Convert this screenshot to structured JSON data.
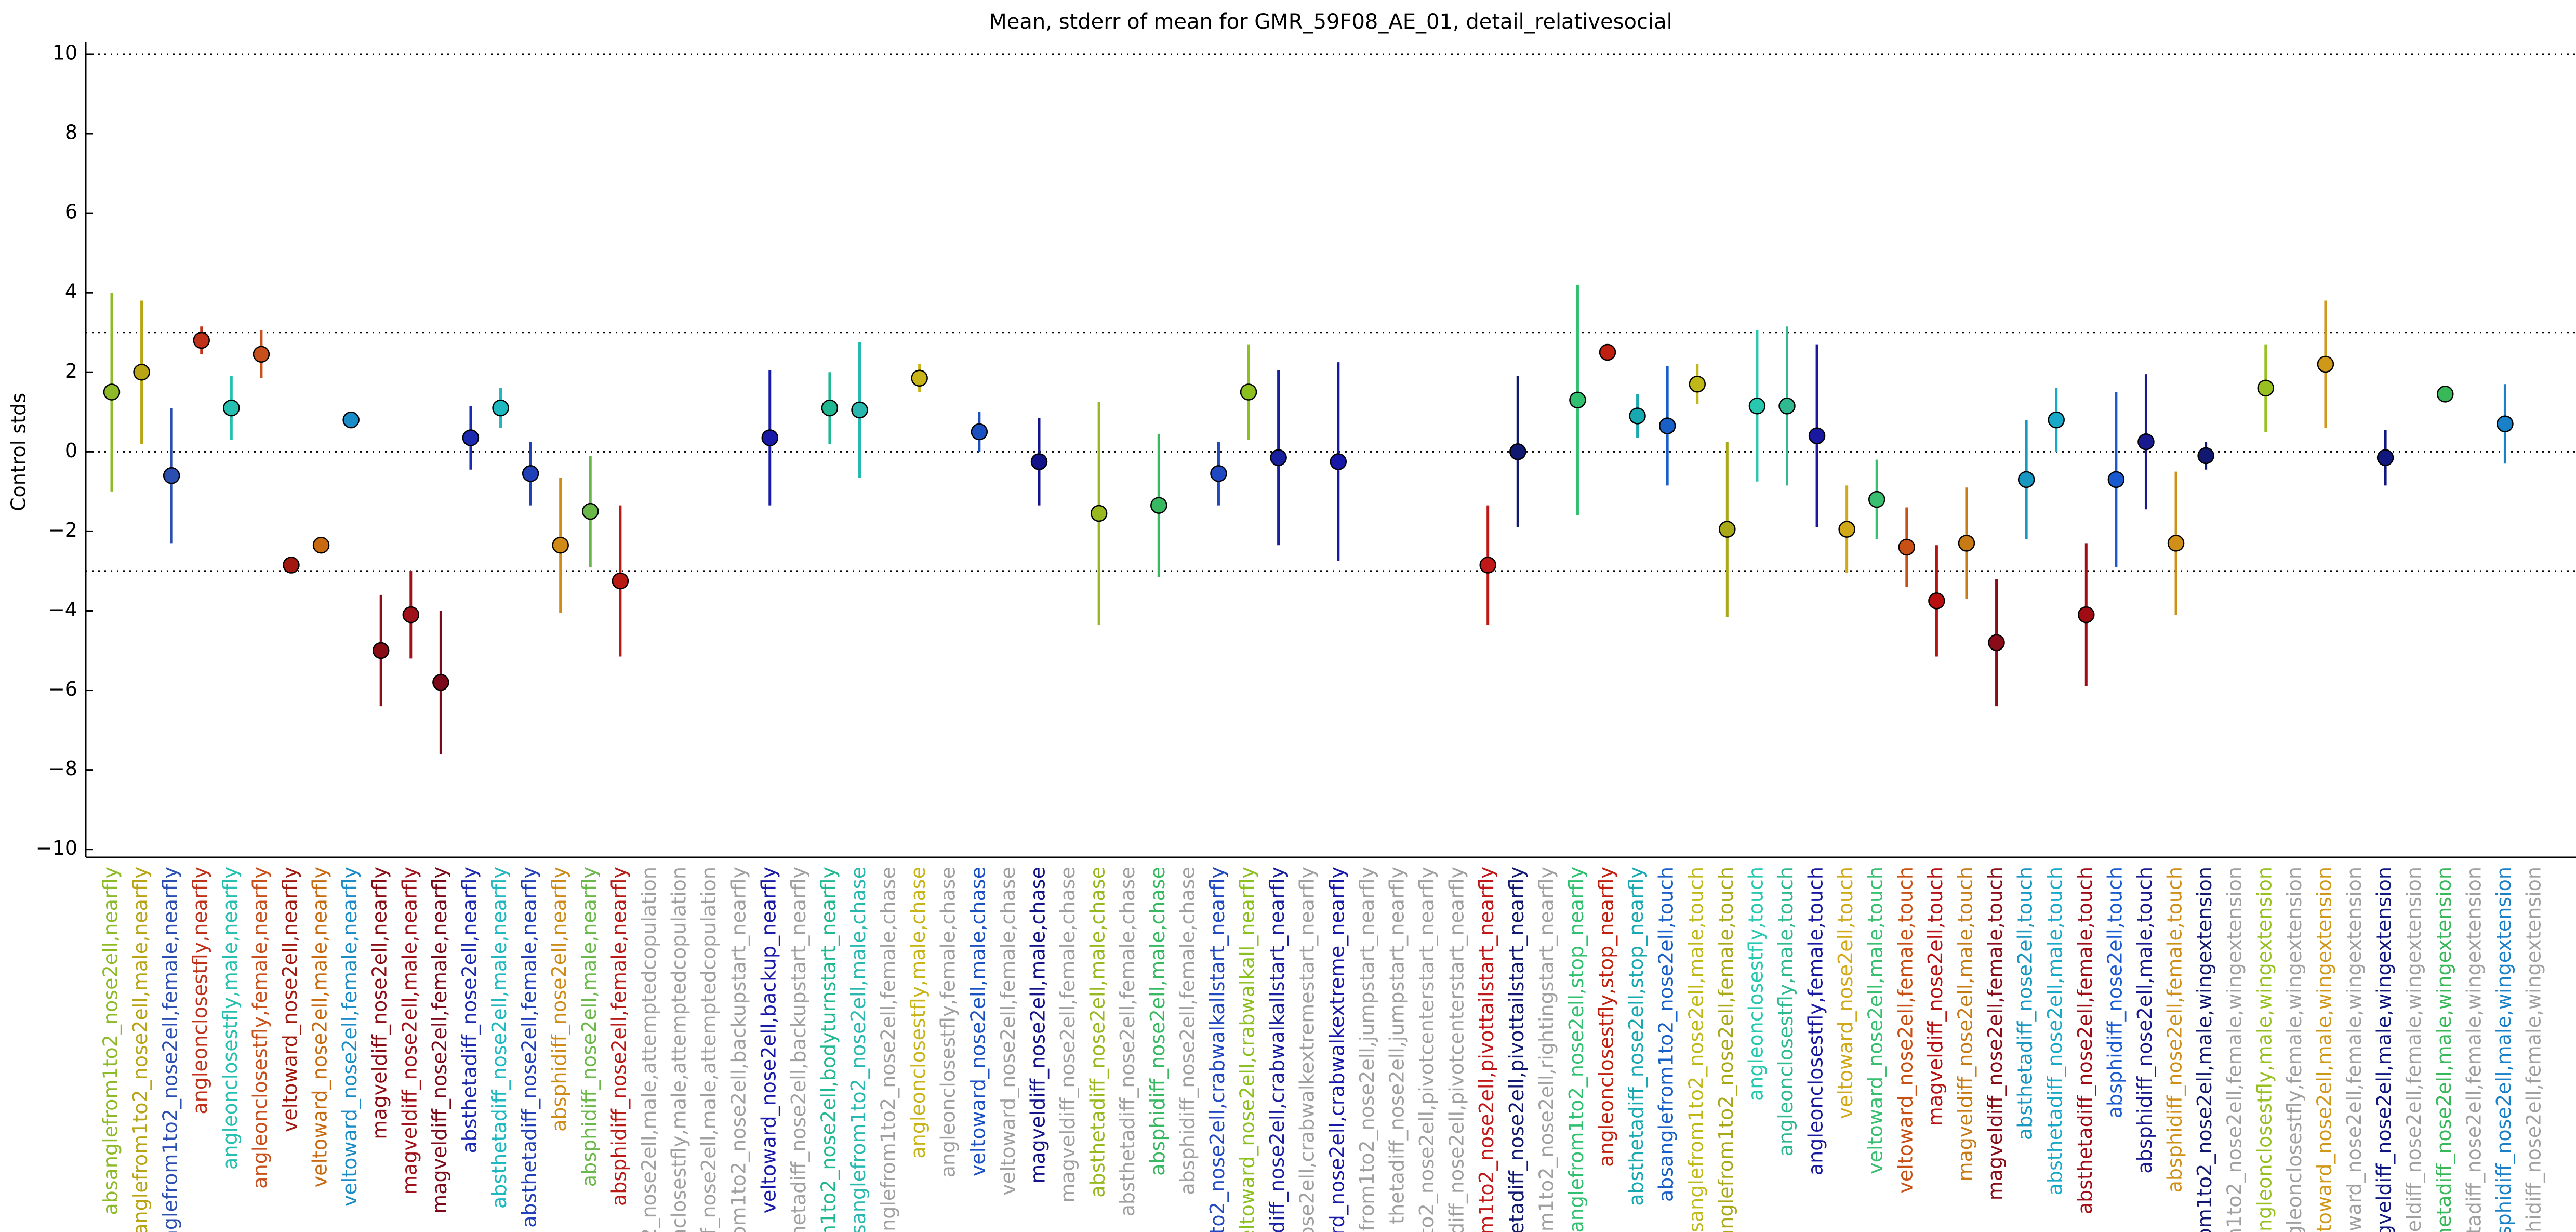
{
  "chart_data": {
    "type": "errorbar",
    "title": "Mean, stderr of mean for GMR_59F08_AE_01, detail_relativesocial",
    "ylabel": "Control stds",
    "ylim": [
      -10.2,
      10.3
    ],
    "yticks": [
      {
        "value": -10,
        "label": "−10"
      },
      {
        "value": -8,
        "label": "−8"
      },
      {
        "value": -6,
        "label": "−6"
      },
      {
        "value": -4,
        "label": "−4"
      },
      {
        "value": -2,
        "label": "−2"
      },
      0,
      2,
      4,
      6,
      8,
      10
    ],
    "hlines": [
      10,
      3,
      0,
      -3
    ],
    "categories": [
      "absanglefrom1to2_nose2ell,nearfly",
      "sanglefrom1to2_nose2ell,male,nearfly",
      "anglefrom1to2_nose2ell,female,nearfly",
      "angleonclosestfly,nearfly",
      "angleonclosestfly,male,nearfly",
      "angleonclosestfly,female,nearfly",
      "veltoward_nose2ell,nearfly",
      "veltoward_nose2ell,male,nearfly",
      "veltoward_nose2ell,female,nearfly",
      "magveldiff_nose2ell,nearfly",
      "magveldiff_nose2ell,male,nearfly",
      "magveldiff_nose2ell,female,nearfly",
      "absthetadiff_nose2ell,nearfly",
      "absthetadiff_nose2ell,male,nearfly",
      "absthetadiff_nose2ell,female,nearfly",
      "absphidiff_nose2ell,nearfly",
      "absphidiff_nose2ell,male,nearfly",
      "absphidiff_nose2ell,female,nearfly",
      "o2_nose2ell,male,attemptedcopulation",
      "onclosestfly,male,attemptedcopulation",
      "iff_nose2ell,male,attemptedcopulation",
      "rom1to2_nose2ell,backupstart_nearfly",
      "veltoward_nose2ell,backup_nearfly",
      "thetadiff_nose2ell,backupstart_nearfly",
      "m1to2_nose2ell,bodyturnstart_nearfly",
      "bsanglefrom1to2_nose2ell,male,chase",
      "anglefrom1to2_nose2ell,female,chase",
      "angleonclosestfly,male,chase",
      "angleonclosestfly,female,chase",
      "veltoward_nose2ell,male,chase",
      "veltoward_nose2ell,female,chase",
      "magveldiff_nose2ell,male,chase",
      "magveldiff_nose2ell,female,chase",
      "absthetadiff_nose2ell,male,chase",
      "absthetadiff_nose2ell,female,chase",
      "absphidiff_nose2ell,male,chase",
      "absphidiff_nose2ell,female,chase",
      "1to2_nose2ell,crabwalkallstart_nearfly",
      "veltoward_nose2ell,crabwalkall_nearfly",
      "adiff_nose2ell,crabwalkallstart_nearfly",
      "ose2ell,crabwalkextremestart_nearfly",
      "ard_nose2ell,crabwalkextreme_nearfly",
      "lefrom1to2_nose2ell,jumpstart_nearfly",
      "thetadiff_nose2ell,jumpstart_nearfly",
      "f1to2_nose2ell,pivotcenterstart_nearfly",
      "adiff_nose2ell,pivotcenterstart_nearfly",
      "rom1to2_nose2ell,pivottailstart_nearfly",
      "thetadiff_nose2ell,pivottailstart_nearfly",
      "rom1to2_nose2ell,rightingstart_nearfly",
      "sanglefrom1to2_nose2ell,stop_nearfly",
      "angleonclosestfly,stop_nearfly",
      "absthetadiff_nose2ell,stop_nearfly",
      "absanglefrom1to2_nose2ell,touch",
      "bsanglefrom1to2_nose2ell,male,touch",
      "sanglefrom1to2_nose2ell,female,touch",
      "angleonclosestfly,touch",
      "angleonclosestfly,male,touch",
      "angleonclosestfly,female,touch",
      "veltoward_nose2ell,touch",
      "veltoward_nose2ell,male,touch",
      "veltoward_nose2ell,female,touch",
      "magveldiff_nose2ell,touch",
      "magveldiff_nose2ell,male,touch",
      "magveldiff_nose2ell,female,touch",
      "absthetadiff_nose2ell,touch",
      "absthetadiff_nose2ell,male,touch",
      "absthetadiff_nose2ell,female,touch",
      "absphidiff_nose2ell,touch",
      "absphidiff_nose2ell,male,touch",
      "absphidiff_nose2ell,female,touch",
      "rom1to2_nose2ell,male,wingextension",
      "m1to2_nose2ell,female,wingextension",
      "angleonclosestfly,male,wingextension",
      "ngleonclosestfly,female,wingextension",
      "eltoward_nose2ell,male,wingextension",
      "toward_nose2ell,female,wingextension",
      "agveldiff_nose2ell,male,wingextension",
      "gveldiff_nose2ell,female,wingextension",
      "thetadiff_nose2ell,male,wingextension",
      "thetadiff_nose2ell,female,wingextension",
      "bsphidiff_nose2ell,male,wingextension",
      "bsphidiff_nose2ell,female,wingextension"
    ],
    "values": [
      1.5,
      2.0,
      -0.6,
      2.8,
      1.1,
      2.45,
      -2.85,
      -2.35,
      0.8,
      -5.0,
      -4.1,
      -5.8,
      0.35,
      1.1,
      -0.55,
      -2.35,
      -1.5,
      -3.25,
      null,
      null,
      null,
      null,
      0.35,
      null,
      1.1,
      1.05,
      null,
      1.85,
      null,
      0.5,
      null,
      -0.25,
      null,
      -1.55,
      null,
      -1.35,
      null,
      -0.55,
      1.5,
      -0.15,
      null,
      -0.25,
      null,
      null,
      null,
      null,
      -2.85,
      0.0,
      null,
      1.3,
      2.5,
      0.9,
      0.65,
      1.7,
      -1.95,
      1.15,
      1.15,
      0.4,
      -1.95,
      -1.2,
      -2.4,
      -3.75,
      -2.3,
      -4.8,
      -0.7,
      0.8,
      -4.1,
      -0.7,
      0.25,
      -2.3,
      -0.1,
      null,
      1.6,
      null,
      2.2,
      null,
      -0.15,
      null,
      1.45,
      null,
      0.7,
      null
    ],
    "errors": [
      2.5,
      1.8,
      1.7,
      0.35,
      0.8,
      0.6,
      0.15,
      0.15,
      0.2,
      1.4,
      1.1,
      1.8,
      0.8,
      0.5,
      0.8,
      1.7,
      1.4,
      1.9,
      null,
      null,
      null,
      null,
      1.7,
      null,
      0.9,
      1.7,
      null,
      0.35,
      null,
      0.5,
      null,
      1.1,
      null,
      2.8,
      null,
      1.8,
      null,
      0.8,
      1.2,
      2.2,
      null,
      2.5,
      null,
      null,
      null,
      null,
      1.5,
      1.9,
      null,
      2.9,
      0.1,
      0.55,
      1.5,
      0.5,
      2.2,
      1.9,
      2.0,
      2.3,
      1.1,
      1.0,
      1.0,
      1.4,
      1.4,
      1.6,
      1.5,
      0.8,
      1.8,
      2.2,
      1.7,
      1.8,
      0.35,
      null,
      1.1,
      null,
      1.6,
      null,
      0.7,
      null,
      0.2,
      null,
      1.0,
      null
    ],
    "colors": [
      "#8dbb28",
      "#b8a414",
      "#2a4fb0",
      "#c0311a",
      "#26c0b0",
      "#c8501c",
      "#a0180e",
      "#c86a10",
      "#1a8cc8",
      "#8a0c14",
      "#a0121a",
      "#7a0a1a",
      "#1c2ab0",
      "#20b8c0",
      "#2040b8",
      "#d08a18",
      "#6ab84a",
      "#b81a14",
      "#a0a0a0",
      "#a0a0a0",
      "#a0a0a0",
      "#a0a0a0",
      "#1a1aa8",
      "#a0a0a0",
      "#20b890",
      "#28b8b0",
      "#a0a0a0",
      "#c8b418",
      "#a0a0a0",
      "#1a50c0",
      "#a0a0a0",
      "#14148a",
      "#a0a0a0",
      "#98b820",
      "#a0a0a0",
      "#38b860",
      "#a0a0a0",
      "#2048c0",
      "#8cc020",
      "#1820a0",
      "#a0a0a0",
      "#1818a8",
      "#a0a0a0",
      "#a0a0a0",
      "#a0a0a0",
      "#a0a0a0",
      "#c01818",
      "#101870",
      "#a0a0a0",
      "#30c070",
      "#c02010",
      "#18a8b0",
      "#1860c8",
      "#c0b818",
      "#a8a818",
      "#28c8b0",
      "#30b890",
      "#1818a0",
      "#d0a818",
      "#38c070",
      "#c85014",
      "#b81010",
      "#c87a14",
      "#8a0c18",
      "#1898c0",
      "#18a8c8",
      "#a00c14",
      "#1a5ad0",
      "#1a1a90",
      "#d09018",
      "#101870",
      "#a0a0a0",
      "#98c020",
      "#a0a0a0",
      "#d09818",
      "#a0a0a0",
      "#101880",
      "#a0a0a0",
      "#38b858",
      "#a0a0a0",
      "#1a80c8",
      "#a0a0a0"
    ]
  }
}
